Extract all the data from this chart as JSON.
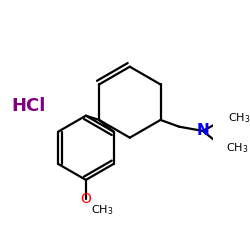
{
  "background": "#ffffff",
  "bond_color": "#000000",
  "hcl_color": "#800080",
  "N_color": "#0000ff",
  "O_color": "#ff0000",
  "hcl_text": "HCl",
  "hcl_fontsize": 13,
  "N_fontsize": 10,
  "CH3_fontsize": 8,
  "O_fontsize": 9,
  "linewidth": 1.6
}
